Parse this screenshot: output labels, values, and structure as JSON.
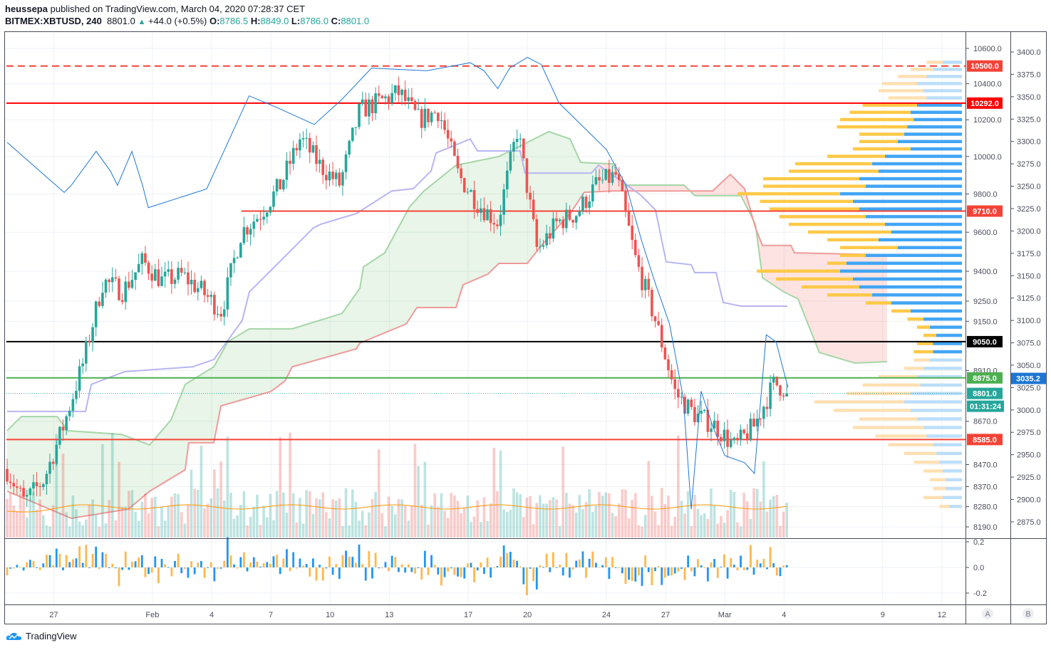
{
  "header": {
    "publisher": "heussepa",
    "published_text": "published on TradingView.com, March 04, 2020 07:28:37 CET",
    "symbol": "BITMEX:XBTUSD, 240",
    "last": "8801.0",
    "change": "+44.0 (+0.5%)",
    "o_label": "O:",
    "o": "8786.5",
    "h_label": "H:",
    "h": "8849.0",
    "l_label": "L:",
    "l": "8786.0",
    "c_label": "C:",
    "c": "8801.0"
  },
  "footer": {
    "brand": "TradingView"
  },
  "axis_buttons": {
    "a": "A",
    "b": "B"
  },
  "chart_data": {
    "type": "candlestick",
    "symbol": "BITMEX:XBTUSD",
    "interval": "240",
    "scale": "log",
    "price_ticks": [
      "10600.0",
      "10400.0",
      "10200.0",
      "10000.0",
      "9800.0",
      "9600.0",
      "9400.0",
      "9250.0",
      "9150.0",
      "8910.0",
      "8670.0",
      "8470.0",
      "8370.0",
      "8280.0",
      "8190.0"
    ],
    "secondary_ticks": [
      "3400.0",
      "3375.0",
      "3350.0",
      "3325.0",
      "3300.0",
      "3275.0",
      "3250.0",
      "3225.0",
      "3200.0",
      "3175.0",
      "3150.0",
      "3125.0",
      "3100.0",
      "3075.0",
      "3050.0",
      "3025.0",
      "3000.0",
      "2975.0",
      "2950.0",
      "2925.0",
      "2900.0",
      "2875.0"
    ],
    "oscillator_ticks": [
      "0.2",
      "0.0",
      "-0.2"
    ],
    "date_ticks": [
      {
        "day": 2,
        "label": "27"
      },
      {
        "day": 7,
        "label": "Feb"
      },
      {
        "day": 10,
        "label": "4"
      },
      {
        "day": 13,
        "label": "7"
      },
      {
        "day": 16,
        "label": "10"
      },
      {
        "day": 19,
        "label": "13"
      },
      {
        "day": 23,
        "label": "17"
      },
      {
        "day": 26,
        "label": "20"
      },
      {
        "day": 30,
        "label": "24"
      },
      {
        "day": 33,
        "label": "27"
      },
      {
        "day": 36,
        "label": "Mar"
      },
      {
        "day": 39,
        "label": "4"
      },
      {
        "day": 44,
        "label": "9"
      },
      {
        "day": 47,
        "label": "12"
      }
    ],
    "start_open": 8450,
    "daily_closes": [
      8300,
      8400,
      8650,
      8950,
      9350,
      9300,
      9450,
      9350,
      9380,
      9300,
      9200,
      9600,
      9700,
      9850,
      10100,
      9950,
      9850,
      10250,
      10300,
      10350,
      10200,
      10250,
      9900,
      9750,
      9650,
      10150,
      9500,
      9650,
      9700,
      9850,
      9900,
      9450,
      9150,
      8800,
      8700,
      8650,
      8550,
      8650,
      8850,
      8801
    ],
    "levels": [
      {
        "price": 10500,
        "label": "10500.0",
        "color": "#f44336",
        "style": "dashed",
        "from_day": -0.4
      },
      {
        "price": 10292,
        "label": "10292.0",
        "color": "#ff0000",
        "style": "solid",
        "from_day": -0.4
      },
      {
        "price": 9710,
        "label": "9710.0",
        "color": "#f44336",
        "style": "solid",
        "from_day": 11.5
      },
      {
        "price": 9050,
        "label": "9050.0",
        "color": "#000000",
        "style": "solid",
        "from_day": -0.4
      },
      {
        "price": 8875,
        "label": "8875.0",
        "color": "#4caf50",
        "style": "solid",
        "from_day": -0.4
      },
      {
        "price": 8801,
        "label": "8801.0",
        "color": "#26a69a",
        "style": "dotted",
        "from_day": -0.4
      },
      {
        "price": 8585,
        "label": "8585.0",
        "color": "#f44336",
        "style": "solid",
        "from_day": -0.4
      }
    ],
    "countdown": {
      "label": "01:31:24",
      "color": "#26a69a"
    },
    "secondary_last": {
      "label": "3035.2",
      "value": 3035.2,
      "color": "#1e76d2"
    },
    "secondary_series": [
      [
        -0.36,
        3299
      ],
      [
        2.53,
        3243
      ],
      [
        2.89,
        3251
      ],
      [
        4.15,
        3289
      ],
      [
        4.87,
        3267
      ],
      [
        5.23,
        3251
      ],
      [
        5.96,
        3289
      ],
      [
        6.5,
        3251
      ],
      [
        6.79,
        3226
      ],
      [
        9.75,
        3247
      ],
      [
        11.9,
        3351
      ],
      [
        13.2,
        3339
      ],
      [
        15.2,
        3319
      ],
      [
        16.6,
        3347
      ],
      [
        18.1,
        3382
      ],
      [
        20.9,
        3379
      ],
      [
        23.1,
        3388
      ],
      [
        23.8,
        3379
      ],
      [
        24.5,
        3359
      ],
      [
        25.1,
        3382
      ],
      [
        26.0,
        3394
      ],
      [
        26.7,
        3386
      ],
      [
        27.6,
        3343
      ],
      [
        30.0,
        3291
      ],
      [
        31.0,
        3251
      ],
      [
        31.8,
        3188
      ],
      [
        32.5,
        3140
      ],
      [
        33.2,
        3096
      ],
      [
        33.9,
        3013
      ],
      [
        34.3,
        2889
      ],
      [
        34.8,
        3021
      ],
      [
        35.4,
        2981
      ],
      [
        36.0,
        2949
      ],
      [
        37.0,
        2941
      ],
      [
        37.5,
        2929
      ],
      [
        38.1,
        3084
      ],
      [
        38.6,
        3076
      ],
      [
        39.2,
        3025
      ]
    ],
    "kijun": [
      [
        -0.36,
        8716
      ],
      [
        3.61,
        8716
      ],
      [
        3.9,
        8844
      ],
      [
        5.6,
        8905
      ],
      [
        9.03,
        8928
      ],
      [
        10.11,
        8963
      ],
      [
        11.55,
        9154
      ],
      [
        11.91,
        9296
      ],
      [
        13.72,
        9476
      ],
      [
        15.16,
        9623
      ],
      [
        15.52,
        9641
      ],
      [
        17.33,
        9697
      ],
      [
        19.13,
        9816
      ],
      [
        20.22,
        9828
      ],
      [
        21.12,
        9923
      ],
      [
        21.37,
        10019
      ],
      [
        23.1,
        10095
      ],
      [
        23.47,
        10030
      ],
      [
        25.63,
        10030
      ],
      [
        25.88,
        9911
      ],
      [
        29.24,
        9911
      ],
      [
        29.6,
        9953
      ],
      [
        31.05,
        9847
      ],
      [
        31.77,
        9791
      ],
      [
        32.49,
        9716
      ],
      [
        33.03,
        9448
      ],
      [
        34.3,
        9433
      ],
      [
        34.48,
        9393
      ],
      [
        35.56,
        9393
      ],
      [
        35.92,
        9243
      ],
      [
        36.82,
        9225
      ],
      [
        39.17,
        9225
      ]
    ],
    "senkou_a": [
      [
        -0.36,
        8626
      ],
      [
        0.36,
        8692
      ],
      [
        2.17,
        8692
      ],
      [
        2.71,
        8626
      ],
      [
        5.42,
        8609
      ],
      [
        6.86,
        8560
      ],
      [
        7.94,
        8676
      ],
      [
        8.66,
        8844
      ],
      [
        10.11,
        8928
      ],
      [
        10.83,
        9050
      ],
      [
        11.91,
        9113
      ],
      [
        14.08,
        9113
      ],
      [
        16.61,
        9189
      ],
      [
        17.51,
        9314
      ],
      [
        17.69,
        9422
      ],
      [
        18.77,
        9494
      ],
      [
        20.04,
        9734
      ],
      [
        20.76,
        9816
      ],
      [
        22.38,
        9953
      ],
      [
        24.55,
        10000
      ],
      [
        25.99,
        10076
      ],
      [
        27.08,
        10135
      ],
      [
        28.16,
        10095
      ],
      [
        28.7,
        9968
      ],
      [
        30.32,
        9960
      ],
      [
        30.87,
        9847
      ],
      [
        33.94,
        9847
      ],
      [
        34.48,
        9791
      ],
      [
        36.82,
        9791
      ],
      [
        37.55,
        9641
      ],
      [
        37.91,
        9367
      ],
      [
        38.99,
        9296
      ],
      [
        39.71,
        9261
      ],
      [
        40.79,
        8997
      ],
      [
        42.6,
        8946
      ],
      [
        44.22,
        8953
      ]
    ],
    "senkou_b": [
      [
        -0.36,
        8349
      ],
      [
        2.89,
        8228
      ],
      [
        5.78,
        8269
      ],
      [
        6.86,
        8349
      ],
      [
        8.66,
        8446
      ],
      [
        8.84,
        8570
      ],
      [
        10.11,
        8570
      ],
      [
        10.47,
        8742
      ],
      [
        13.0,
        8810
      ],
      [
        13.72,
        8861
      ],
      [
        14.08,
        8928
      ],
      [
        17.33,
        9015
      ],
      [
        17.51,
        9043
      ],
      [
        19.86,
        9137
      ],
      [
        20.4,
        9218
      ],
      [
        22.38,
        9218
      ],
      [
        22.74,
        9332
      ],
      [
        24.0,
        9386
      ],
      [
        24.55,
        9440
      ],
      [
        25.99,
        9440
      ],
      [
        26.71,
        9532
      ],
      [
        28.16,
        9697
      ],
      [
        28.88,
        9809
      ],
      [
        30.32,
        9816
      ],
      [
        35.38,
        9816
      ],
      [
        36.28,
        9904
      ],
      [
        37.0,
        9828
      ],
      [
        37.55,
        9623
      ],
      [
        37.91,
        9532
      ],
      [
        39.35,
        9532
      ],
      [
        39.53,
        9494
      ],
      [
        44.22,
        9484
      ]
    ],
    "volume_profile": [
      [
        10520,
        30,
        25
      ],
      [
        10480,
        45,
        35
      ],
      [
        10440,
        55,
        45
      ],
      [
        10400,
        70,
        55
      ],
      [
        10360,
        60,
        70
      ],
      [
        10320,
        55,
        60
      ],
      [
        10280,
        70,
        85
      ],
      [
        10240,
        80,
        95
      ],
      [
        10200,
        75,
        115
      ],
      [
        10160,
        85,
        110
      ],
      [
        10120,
        90,
        70
      ],
      [
        10080,
        100,
        60
      ],
      [
        10040,
        80,
        90
      ],
      [
        10000,
        120,
        90
      ],
      [
        9960,
        140,
        120
      ],
      [
        9920,
        130,
        140
      ],
      [
        9880,
        160,
        150
      ],
      [
        9840,
        150,
        160
      ],
      [
        9800,
        190,
        160
      ],
      [
        9760,
        170,
        145
      ],
      [
        9720,
        160,
        140
      ],
      [
        9680,
        150,
        135
      ],
      [
        9640,
        120,
        150
      ],
      [
        9600,
        110,
        130
      ],
      [
        9560,
        130,
        80
      ],
      [
        9520,
        100,
        90
      ],
      [
        9480,
        150,
        40
      ],
      [
        9440,
        180,
        30
      ],
      [
        9400,
        190,
        130
      ],
      [
        9360,
        170,
        120
      ],
      [
        9320,
        160,
        90
      ],
      [
        9280,
        140,
        70
      ],
      [
        9240,
        110,
        40
      ],
      [
        9200,
        80,
        30
      ],
      [
        9160,
        60,
        25
      ],
      [
        9120,
        50,
        20
      ],
      [
        9080,
        40,
        20
      ],
      [
        9040,
        45,
        25
      ],
      [
        9000,
        45,
        30
      ],
      [
        8960,
        50,
        25
      ],
      [
        8920,
        60,
        30
      ],
      [
        8880,
        70,
        60
      ],
      [
        8840,
        65,
        90
      ],
      [
        8800,
        80,
        100
      ],
      [
        8760,
        90,
        140
      ],
      [
        8720,
        80,
        120
      ],
      [
        8680,
        70,
        90
      ],
      [
        8640,
        60,
        110
      ],
      [
        8600,
        55,
        80
      ],
      [
        8560,
        45,
        70
      ],
      [
        8520,
        40,
        50
      ],
      [
        8480,
        35,
        40
      ],
      [
        8440,
        30,
        30
      ],
      [
        8400,
        25,
        25
      ],
      [
        8360,
        25,
        20
      ],
      [
        8320,
        30,
        30
      ],
      [
        8280,
        20,
        15
      ]
    ]
  }
}
